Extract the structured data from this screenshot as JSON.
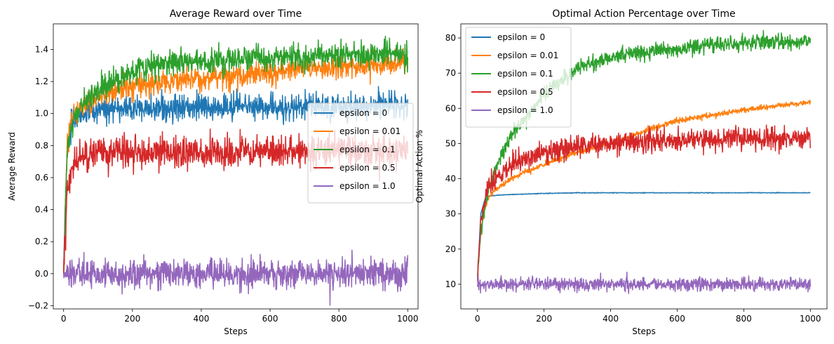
{
  "figure": {
    "background": "#ffffff"
  },
  "chart_data": [
    {
      "type": "line",
      "title": "Average Reward over Time",
      "xlabel": "Steps",
      "ylabel": "Average Reward",
      "xlim": [
        -30,
        1030
      ],
      "ylim": [
        -0.22,
        1.56
      ],
      "xticks": [
        0,
        200,
        400,
        600,
        800,
        1000
      ],
      "yticks": [
        -0.2,
        0.0,
        0.2,
        0.4,
        0.6,
        0.8,
        1.0,
        1.2,
        1.4
      ],
      "ytick_decimals": 1,
      "grid": false,
      "legend_position": "center-right",
      "steps": 1000,
      "series": [
        {
          "name": "epsilon = 0",
          "color": "#1f77b4",
          "noise": 0.04,
          "curve": [
            [
              0,
              0.0
            ],
            [
              10,
              0.8
            ],
            [
              25,
              0.95
            ],
            [
              50,
              1.0
            ],
            [
              100,
              1.02
            ],
            [
              200,
              1.03
            ],
            [
              400,
              1.04
            ],
            [
              700,
              1.045
            ],
            [
              1000,
              1.05
            ]
          ]
        },
        {
          "name": "epsilon = 0.01",
          "color": "#ff7f0e",
          "noise": 0.035,
          "curve": [
            [
              0,
              0.0
            ],
            [
              10,
              0.8
            ],
            [
              25,
              0.97
            ],
            [
              60,
              1.05
            ],
            [
              100,
              1.1
            ],
            [
              200,
              1.17
            ],
            [
              400,
              1.22
            ],
            [
              600,
              1.26
            ],
            [
              800,
              1.29
            ],
            [
              1000,
              1.32
            ]
          ]
        },
        {
          "name": "epsilon = 0.1",
          "color": "#2ca02c",
          "noise": 0.04,
          "curve": [
            [
              0,
              0.0
            ],
            [
              10,
              0.75
            ],
            [
              25,
              0.95
            ],
            [
              50,
              1.05
            ],
            [
              100,
              1.15
            ],
            [
              200,
              1.27
            ],
            [
              300,
              1.31
            ],
            [
              400,
              1.33
            ],
            [
              600,
              1.35
            ],
            [
              800,
              1.36
            ],
            [
              1000,
              1.37
            ]
          ]
        },
        {
          "name": "epsilon = 0.5",
          "color": "#d62728",
          "noise": 0.05,
          "curve": [
            [
              0,
              0.0
            ],
            [
              10,
              0.5
            ],
            [
              25,
              0.65
            ],
            [
              50,
              0.72
            ],
            [
              100,
              0.74
            ],
            [
              200,
              0.76
            ],
            [
              400,
              0.76
            ],
            [
              700,
              0.77
            ],
            [
              1000,
              0.77
            ]
          ]
        },
        {
          "name": "epsilon = 1.0",
          "color": "#9467bd",
          "noise": 0.045,
          "curve": [
            [
              0,
              0.0
            ],
            [
              1000,
              0.0
            ]
          ]
        }
      ]
    },
    {
      "type": "line",
      "title": "Optimal Action Percentage over Time",
      "xlabel": "Steps",
      "ylabel": "Optimal Action %",
      "xlim": [
        -50,
        1050
      ],
      "ylim": [
        3,
        84
      ],
      "xticks": [
        0,
        200,
        400,
        600,
        800,
        1000
      ],
      "yticks": [
        10,
        20,
        30,
        40,
        50,
        60,
        70,
        80
      ],
      "ytick_decimals": 0,
      "grid": false,
      "legend_position": "top-left",
      "steps": 1000,
      "series": [
        {
          "name": "epsilon = 0",
          "color": "#1f77b4",
          "noise": 0.05,
          "curve": [
            [
              0,
              12
            ],
            [
              10,
              30
            ],
            [
              25,
              35
            ],
            [
              60,
              35.3
            ],
            [
              100,
              35.5
            ],
            [
              200,
              35.8
            ],
            [
              300,
              36
            ],
            [
              1000,
              36
            ]
          ]
        },
        {
          "name": "epsilon = 0.01",
          "color": "#ff7f0e",
          "noise": 0.4,
          "curve": [
            [
              0,
              12
            ],
            [
              10,
              25
            ],
            [
              25,
              33
            ],
            [
              50,
              37
            ],
            [
              100,
              40
            ],
            [
              200,
              44
            ],
            [
              300,
              47.5
            ],
            [
              400,
              50
            ],
            [
              500,
              53.5
            ],
            [
              600,
              56.5
            ],
            [
              700,
              58
            ],
            [
              800,
              59.5
            ],
            [
              900,
              60.8
            ],
            [
              1000,
              61.8
            ]
          ]
        },
        {
          "name": "epsilon = 0.1",
          "color": "#2ca02c",
          "noise": 1.1,
          "curve": [
            [
              0,
              12
            ],
            [
              10,
              25
            ],
            [
              25,
              34
            ],
            [
              50,
              42
            ],
            [
              100,
              52
            ],
            [
              150,
              58
            ],
            [
              200,
              64
            ],
            [
              250,
              68
            ],
            [
              300,
              71
            ],
            [
              350,
              73
            ],
            [
              400,
              74.5
            ],
            [
              500,
              76
            ],
            [
              600,
              77
            ],
            [
              700,
              78
            ],
            [
              800,
              78.5
            ],
            [
              900,
              79
            ],
            [
              1000,
              79
            ]
          ]
        },
        {
          "name": "epsilon = 0.5",
          "color": "#d62728",
          "noise": 1.5,
          "curve": [
            [
              0,
              12
            ],
            [
              10,
              28
            ],
            [
              25,
              35
            ],
            [
              50,
              40
            ],
            [
              100,
              44
            ],
            [
              200,
              47.5
            ],
            [
              300,
              49
            ],
            [
              400,
              50
            ],
            [
              600,
              51
            ],
            [
              800,
              51.5
            ],
            [
              1000,
              51.5
            ]
          ]
        },
        {
          "name": "epsilon = 1.0",
          "color": "#9467bd",
          "noise": 0.9,
          "curve": [
            [
              0,
              10
            ],
            [
              1000,
              10
            ]
          ]
        }
      ]
    }
  ]
}
